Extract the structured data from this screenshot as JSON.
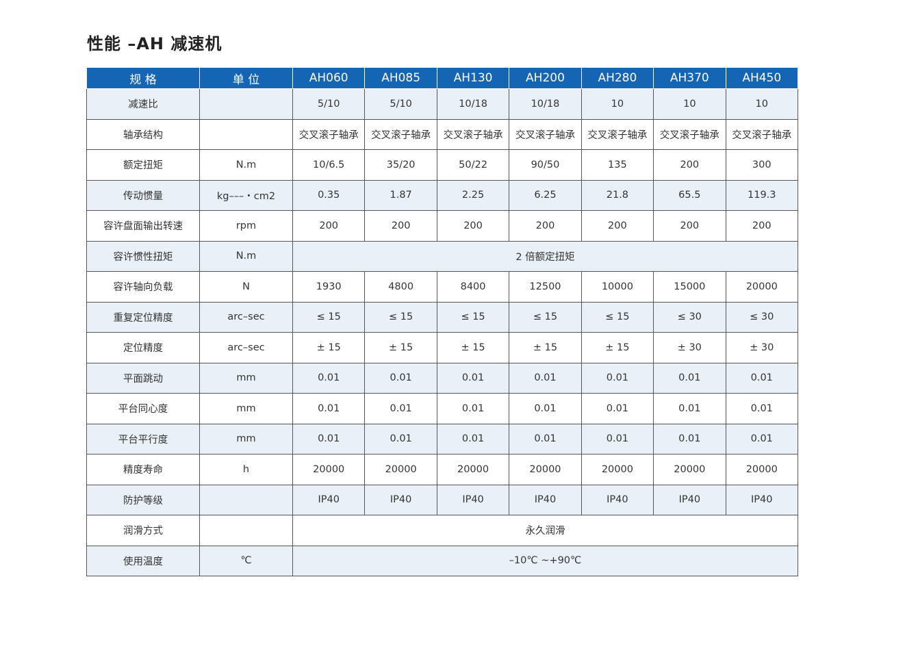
{
  "title": "性能 –AH 减速机",
  "table": {
    "header": [
      "规 格",
      "单 位",
      "AH060",
      "AH085",
      "AH130",
      "AH200",
      "AH280",
      "AH370",
      "AH450"
    ],
    "rows": [
      {
        "label": "减速比",
        "unit": null,
        "values": [
          "5/10",
          "5/10",
          "10/18",
          "10/18",
          "10",
          "10",
          "10"
        ]
      },
      {
        "label": "轴承结构",
        "unit": null,
        "values": [
          "交叉滚子轴承",
          "交叉滚子轴承",
          "交叉滚子轴承",
          "交叉滚子轴承",
          "交叉滚子轴承",
          "交叉滚子轴承",
          "交叉滚子轴承"
        ]
      },
      {
        "label": "额定扭矩",
        "unit": "N.m",
        "values": [
          "10/6.5",
          "35/20",
          "50/22",
          "90/50",
          "135",
          "200",
          "300"
        ]
      },
      {
        "label": "传动惯量",
        "unit": "kg–––・cm2",
        "values": [
          "0.35",
          "1.87",
          "2.25",
          "6.25",
          "21.8",
          "65.5",
          "119.3"
        ]
      },
      {
        "label": "容许盘面输出转速",
        "unit": "rpm",
        "values": [
          "200",
          "200",
          "200",
          "200",
          "200",
          "200",
          "200"
        ]
      },
      {
        "label": "容许惯性扭矩",
        "unit": "N.m",
        "span": "2 倍额定扭矩"
      },
      {
        "label": "容许轴向负载",
        "unit": "N",
        "values": [
          "1930",
          "4800",
          "8400",
          "12500",
          "10000",
          "15000",
          "20000"
        ]
      },
      {
        "label": "重复定位精度",
        "unit": "arc–sec",
        "values": [
          "≤ 15",
          "≤ 15",
          "≤ 15",
          "≤ 15",
          "≤ 15",
          "≤ 30",
          "≤ 30"
        ]
      },
      {
        "label": "定位精度",
        "unit": "arc–sec",
        "values": [
          "± 15",
          "± 15",
          "± 15",
          "± 15",
          "± 15",
          "± 30",
          "± 30"
        ]
      },
      {
        "label": "平面跳动",
        "unit": "mm",
        "values": [
          "0.01",
          "0.01",
          "0.01",
          "0.01",
          "0.01",
          "0.01",
          "0.01"
        ]
      },
      {
        "label": "平台同心度",
        "unit": "mm",
        "values": [
          "0.01",
          "0.01",
          "0.01",
          "0.01",
          "0.01",
          "0.01",
          "0.01"
        ]
      },
      {
        "label": "平台平行度",
        "unit": "mm",
        "values": [
          "0.01",
          "0.01",
          "0.01",
          "0.01",
          "0.01",
          "0.01",
          "0.01"
        ]
      },
      {
        "label": "精度寿命",
        "unit": "h",
        "values": [
          "20000",
          "20000",
          "20000",
          "20000",
          "20000",
          "20000",
          "20000"
        ]
      },
      {
        "label": "防护等级",
        "unit": null,
        "values": [
          "IP40",
          "IP40",
          "IP40",
          "IP40",
          "IP40",
          "IP40",
          "IP40"
        ]
      },
      {
        "label": "润滑方式",
        "unit": null,
        "span": "永久润滑"
      },
      {
        "label": "使用温度",
        "unit": "℃",
        "span": "–10℃ ~+90℃"
      }
    ]
  }
}
